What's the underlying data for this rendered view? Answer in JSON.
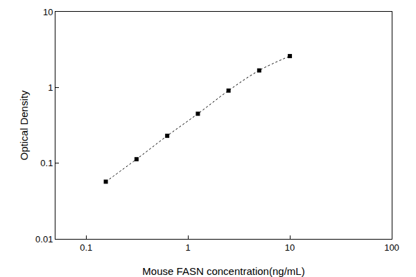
{
  "chart_data": {
    "type": "scatter",
    "x_label": "Mouse FASN concentration(ng/mL)",
    "y_label": "Optical Density",
    "x": [
      0.156,
      0.3125,
      0.625,
      1.25,
      2.5,
      5,
      10
    ],
    "values": [
      0.057,
      0.113,
      0.23,
      0.45,
      0.91,
      1.68,
      2.6
    ],
    "color": "#000000",
    "marker": "square",
    "line_style": "dot",
    "log": true,
    "grid": false,
    "xlim": [
      0.05,
      100
    ],
    "xticks": [
      0.1,
      1,
      10,
      100
    ],
    "ylim": [
      0.01,
      10
    ],
    "yticks": [
      0.01,
      0.1,
      1,
      10
    ]
  }
}
